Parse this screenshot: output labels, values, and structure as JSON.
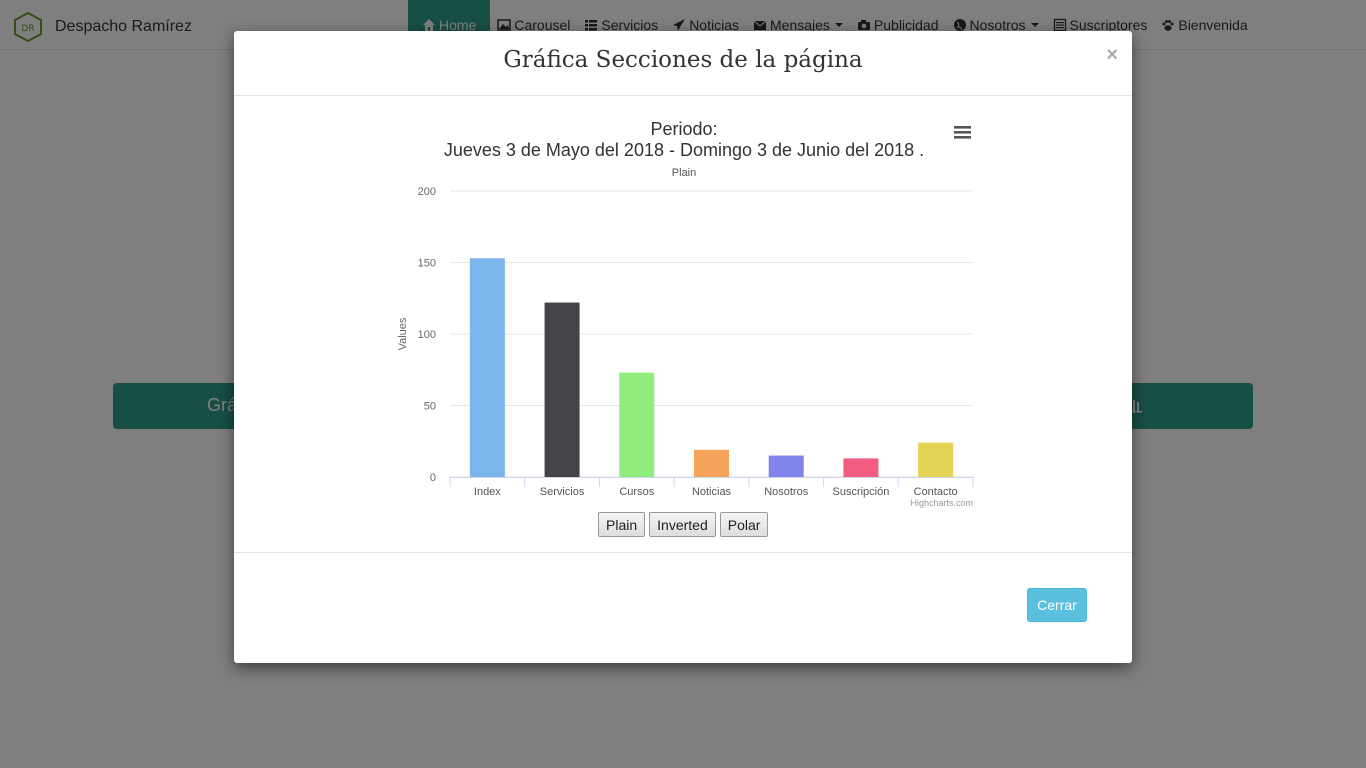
{
  "navbar": {
    "brand_mark": "DR",
    "brand_name": "Despacho Ramírez",
    "items": [
      {
        "label": "Home",
        "icon": "home-icon",
        "active": true
      },
      {
        "label": "Carousel",
        "icon": "picture-icon"
      },
      {
        "label": "Servicios",
        "icon": "list-icon"
      },
      {
        "label": "Noticias",
        "icon": "send-icon"
      },
      {
        "label": "Mensajes",
        "icon": "envelope-icon",
        "dropdown": true
      },
      {
        "label": "Publicidad",
        "icon": "camera-icon"
      },
      {
        "label": "Nosotros",
        "icon": "globe-icon",
        "dropdown": true
      },
      {
        "label": "Suscriptores",
        "icon": "list-alt-icon"
      },
      {
        "label": "Bienvenida",
        "icon": "paw-icon"
      }
    ]
  },
  "background": {
    "bar_label": "Grá"
  },
  "modal": {
    "title": "Gráfica Secciones de la página",
    "close": "×",
    "cerrar_label": "Cerrar",
    "toggles": [
      "Plain",
      "Inverted",
      "Polar"
    ]
  },
  "chart_data": {
    "type": "bar",
    "title_line1": "Periodo:",
    "title_line2": "Jueves 3 de Mayo del 2018 - Domingo 3 de Junio del 2018 .",
    "subtitle": "Plain",
    "ylabel": "Values",
    "xlabel": "",
    "ylim": [
      0,
      200
    ],
    "yticks": [
      0,
      50,
      100,
      150,
      200
    ],
    "categories": [
      "Index",
      "Servicios",
      "Cursos",
      "Noticias",
      "Nosotros",
      "Suscripción",
      "Contacto"
    ],
    "values": [
      153,
      122,
      73,
      19,
      15,
      13,
      24
    ],
    "colors": [
      "#7cb5ec",
      "#434348",
      "#90ed7d",
      "#f7a35c",
      "#8085e9",
      "#f15c80",
      "#e4d354"
    ],
    "grid": true,
    "legend": "none",
    "credits": "Highcharts.com"
  },
  "colors": {
    "accent": "#2f9c8a",
    "info_button": "#5bc0de"
  }
}
